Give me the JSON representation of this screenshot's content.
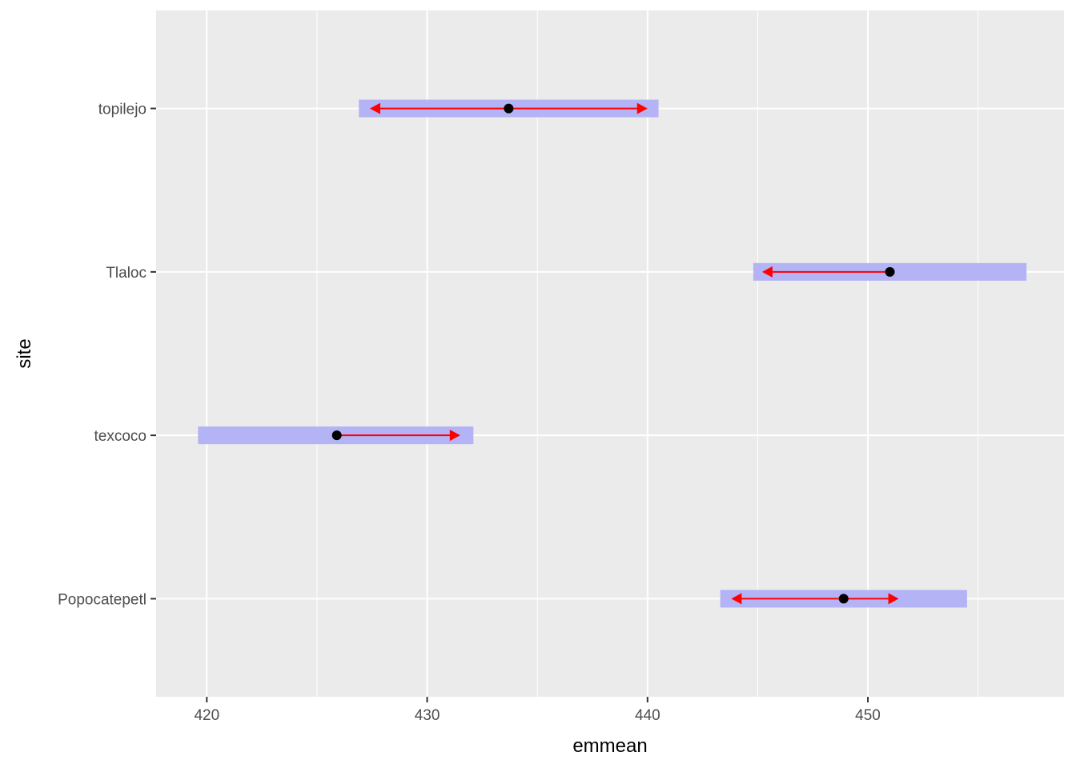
{
  "chart_data": {
    "type": "interval",
    "xlabel": "emmean",
    "ylabel": "site",
    "xlim": [
      417.7,
      458.9
    ],
    "x_ticks": [
      420,
      430,
      440,
      450
    ],
    "grid": true,
    "categories": [
      "Popocatepetl",
      "texcoco",
      "Tlaloc",
      "topilejo"
    ],
    "emmean": [
      448.9,
      425.9,
      451.0,
      433.7
    ],
    "ci_lower": [
      443.3,
      419.6,
      444.8,
      426.9
    ],
    "ci_upper": [
      454.5,
      432.1,
      457.2,
      440.5
    ],
    "comparison_lower": [
      443.8,
      null,
      445.2,
      427.4
    ],
    "comparison_upper": [
      451.4,
      431.5,
      null,
      440.0
    ],
    "colors": {
      "panel": "#ebebeb",
      "grid": "#ffffff",
      "ci_bar": "#b3b3f5",
      "comparison_arrow": "#ff0000",
      "point": "#000000"
    }
  }
}
